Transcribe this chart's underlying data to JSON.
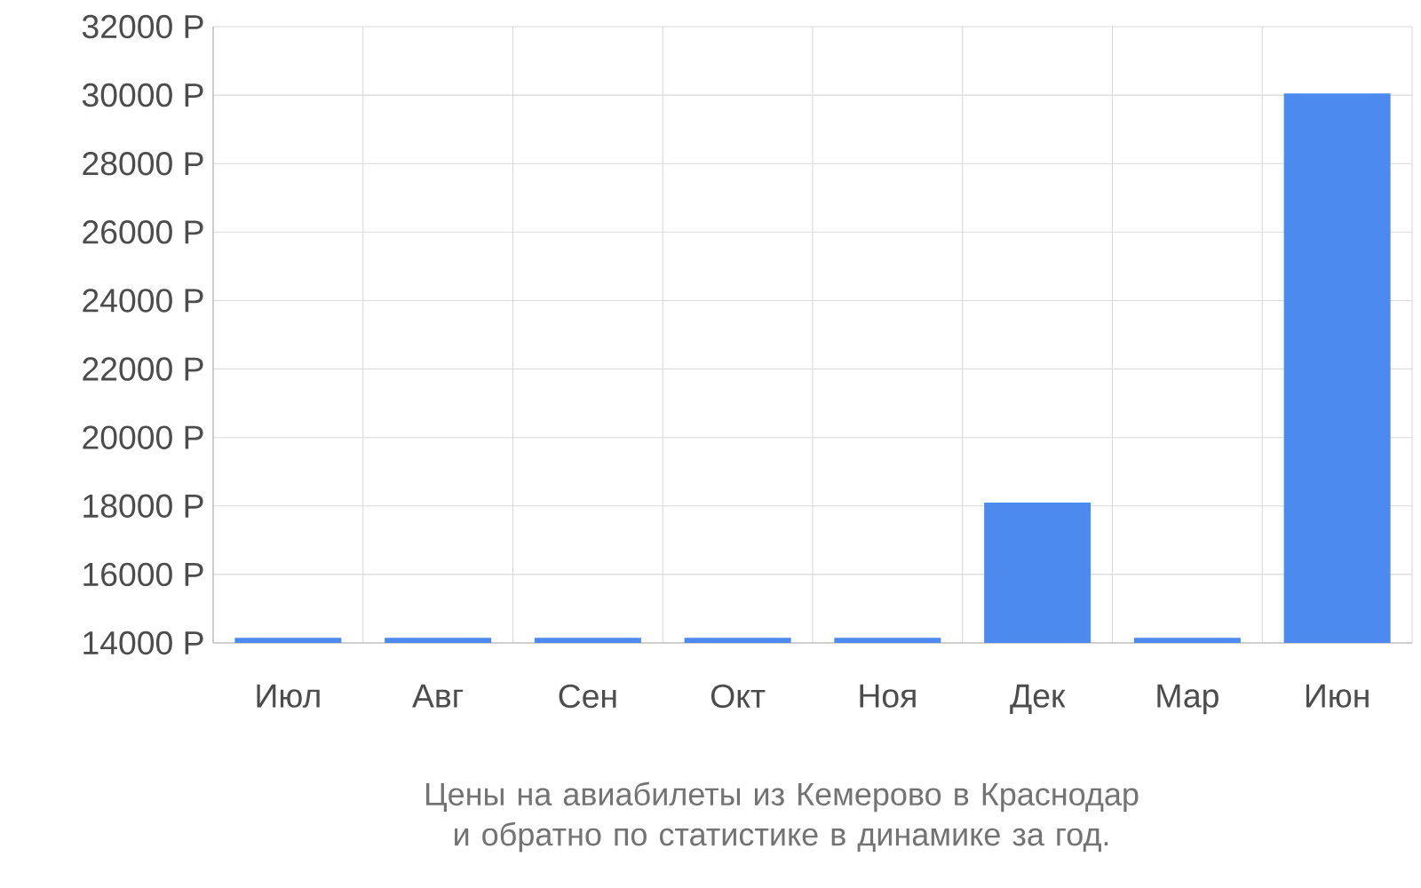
{
  "chart_data": {
    "type": "bar",
    "title": "Цены на авиабилеты из Кемерово в Краснодар и обратно по статистике в динамике за год.",
    "categories": [
      "Июл",
      "Авг",
      "Сен",
      "Окт",
      "Ноя",
      "Дек",
      "Мар",
      "Июн"
    ],
    "values": [
      14150,
      14150,
      14150,
      14150,
      14150,
      18100,
      14150,
      30050
    ],
    "color": "#4d8af0",
    "ylim": [
      14000,
      32000
    ],
    "yticks": [
      {
        "value": 14000,
        "label": "14000 Р"
      },
      {
        "value": 16000,
        "label": "16000 Р"
      },
      {
        "value": 18000,
        "label": "18000 Р"
      },
      {
        "value": 20000,
        "label": "20000 Р"
      },
      {
        "value": 22000,
        "label": "22000 Р"
      },
      {
        "value": 24000,
        "label": "24000 Р"
      },
      {
        "value": 26000,
        "label": "26000 Р"
      },
      {
        "value": 28000,
        "label": "28000 Р"
      },
      {
        "value": 30000,
        "label": "30000 Р"
      },
      {
        "value": 32000,
        "label": "32000 Р"
      }
    ],
    "grid": true
  }
}
